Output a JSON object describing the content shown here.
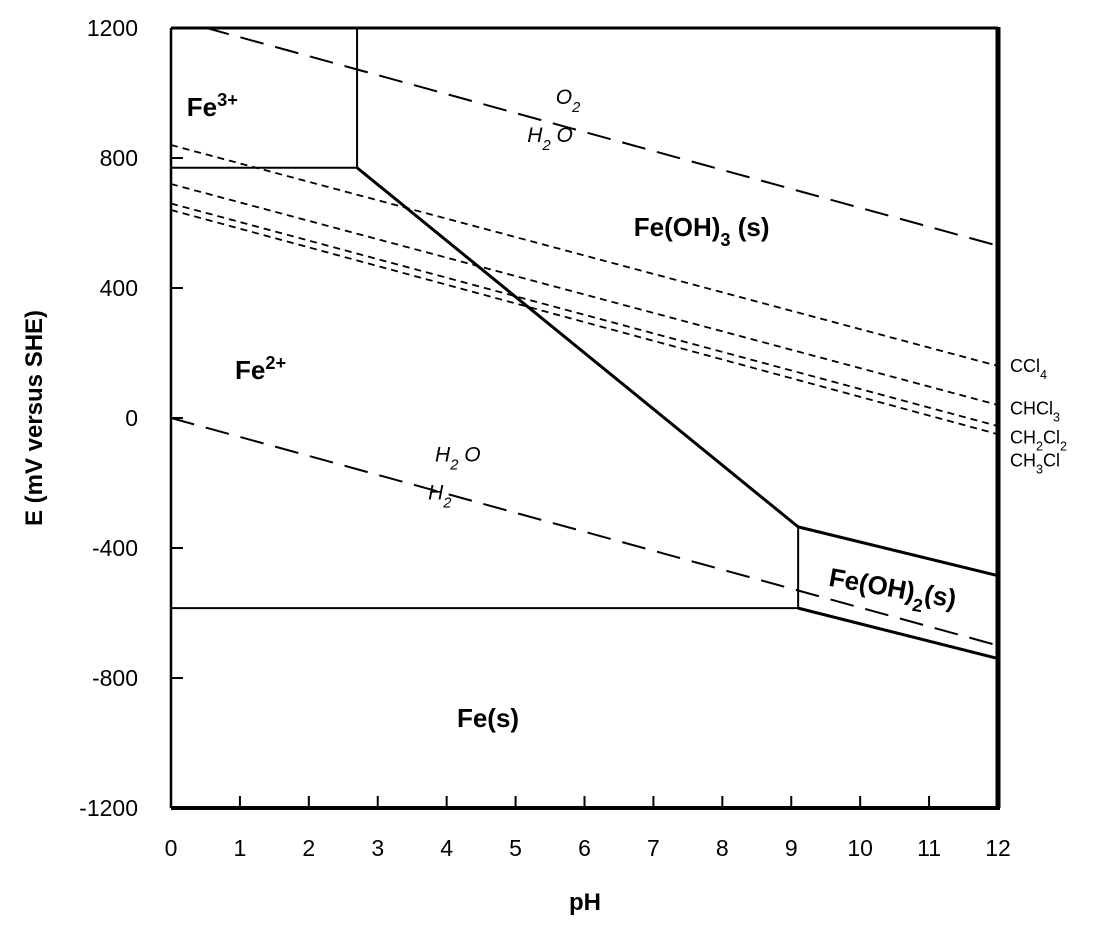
{
  "chart_data": {
    "type": "line",
    "xlabel": "pH",
    "ylabel": "E (mV versus SHE)",
    "xlim": [
      0,
      12
    ],
    "ylim": [
      -1200,
      1200
    ],
    "x_ticks": [
      "0",
      "1",
      "2",
      "3",
      "4",
      "5",
      "6",
      "7",
      "8",
      "9",
      "10",
      "11",
      "12"
    ],
    "y_ticks": [
      "1200",
      "800",
      "400",
      "0",
      "-400",
      "-800",
      "-1200"
    ],
    "grid": false,
    "phase_boundaries": [
      {
        "name": "Fe3+/Fe2+",
        "x": [
          0,
          2.7
        ],
        "y": [
          770,
          770
        ]
      },
      {
        "name": "Fe3+/Fe(OH)3",
        "x": [
          2.7,
          2.7
        ],
        "y": [
          770,
          1200
        ]
      },
      {
        "name": "Fe(OH)3/Fe2+",
        "x": [
          2.7,
          9.1
        ],
        "y": [
          770,
          -335
        ]
      },
      {
        "name": "Fe2+/Fe(OH)2",
        "x": [
          9.1,
          9.1
        ],
        "y": [
          -335,
          -585
        ]
      },
      {
        "name": "Fe(OH)3/Fe(OH)2",
        "x": [
          9.1,
          12
        ],
        "y": [
          -335,
          -485
        ]
      },
      {
        "name": "Fe2+/Fe(s)",
        "x": [
          0,
          9.1
        ],
        "y": [
          -585,
          -585
        ]
      },
      {
        "name": "Fe(OH)2/Fe(s)",
        "x": [
          9.1,
          12
        ],
        "y": [
          -585,
          -740
        ]
      }
    ],
    "water_lines": [
      {
        "name": "O2/H2O",
        "x": [
          0,
          12
        ],
        "y": [
          1230,
          530
        ]
      },
      {
        "name": "H2O/H2",
        "x": [
          0,
          12
        ],
        "y": [
          0,
          -700
        ]
      }
    ],
    "couple_lines": [
      {
        "name": "CCl4",
        "x": [
          0,
          12
        ],
        "y": [
          840,
          160
        ]
      },
      {
        "name": "CHCl3",
        "x": [
          0,
          12
        ],
        "y": [
          720,
          40
        ]
      },
      {
        "name": "CH2Cl2",
        "x": [
          0,
          12
        ],
        "y": [
          660,
          -25
        ]
      },
      {
        "name": "CH3Cl",
        "x": [
          0,
          12
        ],
        "y": [
          640,
          -50
        ]
      }
    ],
    "region_labels": [
      {
        "base": "Fe",
        "sup": "3+",
        "x": 0.6,
        "y": 930
      },
      {
        "base": "Fe",
        "sup": "2+",
        "x": 1.3,
        "y": 120
      },
      {
        "base": "Fe(OH)",
        "sub": "3",
        "tail": " (s)",
        "x": 7.7,
        "y": 560
      },
      {
        "base": "Fe(OH)",
        "sub": "2",
        "tail": "(s)",
        "x": 10.45,
        "y": -550,
        "rotate": 10
      },
      {
        "base": "Fe(s)",
        "x": 4.6,
        "y": -950
      }
    ],
    "couple_labels": [
      {
        "top": "O",
        "top_sub": "2",
        "bottom": "H",
        "bottom_sub": "2",
        "bottom_tail": "O",
        "x": 5.5,
        "y": 930
      },
      {
        "top": "H",
        "top_sub": "2",
        "top_tail": "O",
        "bottom": "H",
        "bottom_sub": "2",
        "x": 3.9,
        "y": -170
      }
    ],
    "species_labels": [
      {
        "text": "CCl",
        "sub": "4",
        "y": 160
      },
      {
        "text": "CHCl",
        "sub": "3",
        "y": 30
      },
      {
        "text": "CH",
        "sub": "2",
        "mid": "Cl",
        "sub2": "2",
        "y": -60
      },
      {
        "text": "CH",
        "sub": "3",
        "mid": "Cl",
        "y": -130
      }
    ]
  }
}
